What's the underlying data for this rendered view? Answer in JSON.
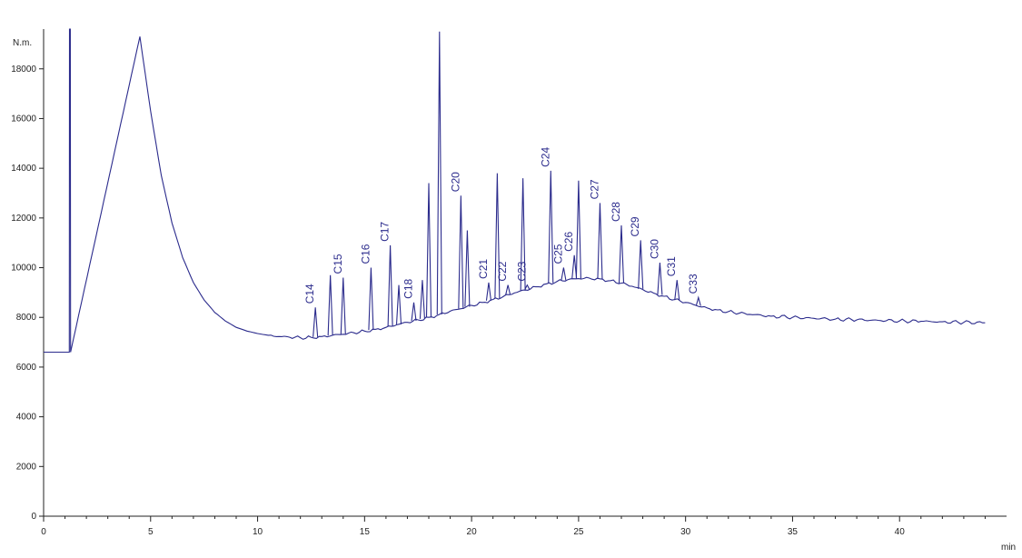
{
  "chart_data": {
    "type": "line",
    "title": "",
    "xlabel": "",
    "ylabel": "",
    "y_unit": "N.m.",
    "x_unit": "min",
    "xlim": [
      0,
      45
    ],
    "ylim": [
      0,
      19600
    ],
    "x_ticks": [
      0,
      5,
      10,
      15,
      20,
      25,
      30,
      35,
      40
    ],
    "y_ticks": [
      0,
      2000,
      4000,
      6000,
      8000,
      10000,
      12000,
      14000,
      16000,
      18000
    ],
    "grid": false,
    "series_color": "#2b2b8c",
    "x": [
      0.0,
      1.2,
      1.21,
      1.25,
      1.26,
      4.5,
      5,
      5.5,
      6,
      6.5,
      7,
      7.5,
      8,
      8.5,
      9,
      9.5,
      10,
      10.5,
      11,
      11.5,
      12,
      12.5,
      13,
      13.5,
      14,
      14.5,
      15,
      15.5,
      16,
      16.5,
      17,
      17.5,
      18,
      18.5,
      19,
      19.5,
      20,
      20.5,
      21,
      21.5,
      22,
      22.5,
      23,
      23.5,
      24,
      24.5,
      25,
      25.5,
      26,
      26.5,
      27,
      27.5,
      28,
      28.5,
      29,
      29.5,
      30,
      30.5,
      31,
      31.5,
      32,
      33,
      34,
      35,
      36,
      37,
      38,
      39,
      40,
      41,
      42,
      43,
      44
    ],
    "y": [
      6600,
      6600,
      19600,
      19600,
      6600,
      19300,
      16300,
      13700,
      11800,
      10400,
      9400,
      8700,
      8200,
      7850,
      7600,
      7450,
      7350,
      7280,
      7230,
      7200,
      7180,
      7200,
      7230,
      7280,
      7320,
      7380,
      7450,
      7520,
      7600,
      7700,
      7800,
      7900,
      8000,
      8120,
      8250,
      8350,
      8480,
      8600,
      8720,
      8850,
      8980,
      9100,
      9230,
      9350,
      9450,
      9520,
      9560,
      9580,
      9550,
      9480,
      9380,
      9250,
      9120,
      8980,
      8850,
      8720,
      8600,
      8480,
      8380,
      8300,
      8230,
      8120,
      8050,
      8000,
      7960,
      7930,
      7900,
      7880,
      7860,
      7840,
      7820,
      7800,
      7780
    ],
    "peaks": [
      {
        "label": "C14",
        "x": 12.7,
        "y": 8400
      },
      {
        "label": "C15",
        "x": 14.0,
        "y": 9600
      },
      {
        "label": "C16",
        "x": 15.3,
        "y": 10000
      },
      {
        "label": "C17",
        "x": 16.2,
        "y": 10900
      },
      {
        "label": "C18",
        "x": 17.3,
        "y": 8600
      },
      {
        "label": "",
        "x": 13.4,
        "y": 9700
      },
      {
        "label": "",
        "x": 16.6,
        "y": 9300
      },
      {
        "label": "",
        "x": 17.7,
        "y": 9500
      },
      {
        "label": "",
        "x": 18.0,
        "y": 13400
      },
      {
        "label": "",
        "x": 18.5,
        "y": 19500
      },
      {
        "label": "C20",
        "x": 19.5,
        "y": 12900
      },
      {
        "label": "",
        "x": 19.8,
        "y": 11500
      },
      {
        "label": "C21",
        "x": 20.8,
        "y": 9400
      },
      {
        "label": "",
        "x": 21.2,
        "y": 13800
      },
      {
        "label": "C22",
        "x": 21.7,
        "y": 9300
      },
      {
        "label": "C23",
        "x": 22.6,
        "y": 9300
      },
      {
        "label": "",
        "x": 22.4,
        "y": 13600
      },
      {
        "label": "C24",
        "x": 23.7,
        "y": 13900
      },
      {
        "label": "C25",
        "x": 24.3,
        "y": 10000
      },
      {
        "label": "C26",
        "x": 24.8,
        "y": 10500
      },
      {
        "label": "",
        "x": 25.0,
        "y": 13500
      },
      {
        "label": "C27",
        "x": 26.0,
        "y": 12600
      },
      {
        "label": "C28",
        "x": 27.0,
        "y": 11700
      },
      {
        "label": "C29",
        "x": 27.9,
        "y": 11100
      },
      {
        "label": "C30",
        "x": 28.8,
        "y": 10200
      },
      {
        "label": "C31",
        "x": 29.6,
        "y": 9500
      },
      {
        "label": "C33",
        "x": 30.6,
        "y": 8800
      }
    ]
  }
}
